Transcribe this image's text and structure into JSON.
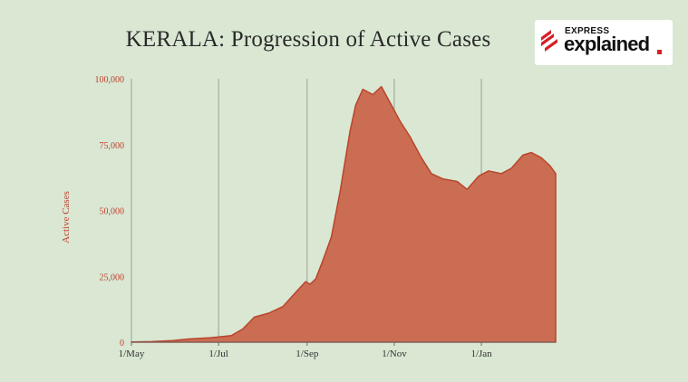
{
  "title": "KERALA: Progression of Active Cases",
  "brand": {
    "line1": "EXPRESS",
    "line2": "explained",
    "accent_color": "#d61f26"
  },
  "colors": {
    "background": "#d9e7d3",
    "area_fill": "#cb6d52",
    "area_stroke": "#b8452c",
    "axis_text": "#c2412c",
    "grid": "#9aa394"
  },
  "chart_data": {
    "type": "area",
    "ylabel": "Active Cases",
    "xlabel": "",
    "ylim": [
      0,
      100000
    ],
    "yticks": [
      0,
      25000,
      50000,
      75000,
      100000
    ],
    "ytick_labels": [
      "0",
      "25,000",
      "50,000",
      "75,000",
      "100,000"
    ],
    "xlim": [
      "2020-05-01",
      "2021-02-22"
    ],
    "xticks": [
      "2020-05-01",
      "2020-07-01",
      "2020-09-01",
      "2020-11-01",
      "2021-01-01"
    ],
    "xtick_labels": [
      "1/May",
      "1/Jul",
      "1/Sep",
      "1/Nov",
      "1/Jan"
    ],
    "grid": "vertical",
    "series": [
      {
        "points": [
          [
            "2020-05-01",
            100
          ],
          [
            "2020-05-15",
            200
          ],
          [
            "2020-05-30",
            600
          ],
          [
            "2020-06-10",
            1200
          ],
          [
            "2020-06-25",
            1700
          ],
          [
            "2020-07-01",
            2000
          ],
          [
            "2020-07-10",
            2500
          ],
          [
            "2020-07-18",
            5000
          ],
          [
            "2020-07-26",
            9500
          ],
          [
            "2020-08-05",
            11000
          ],
          [
            "2020-08-15",
            13500
          ],
          [
            "2020-08-25",
            19500
          ],
          [
            "2020-08-31",
            23000
          ],
          [
            "2020-09-03",
            22000
          ],
          [
            "2020-09-07",
            24000
          ],
          [
            "2020-09-12",
            31000
          ],
          [
            "2020-09-18",
            40000
          ],
          [
            "2020-09-24",
            57000
          ],
          [
            "2020-10-01",
            80000
          ],
          [
            "2020-10-05",
            90000
          ],
          [
            "2020-10-10",
            96000
          ],
          [
            "2020-10-17",
            94000
          ],
          [
            "2020-10-23",
            97000
          ],
          [
            "2020-10-30",
            90000
          ],
          [
            "2020-11-05",
            84000
          ],
          [
            "2020-11-12",
            78000
          ],
          [
            "2020-11-20",
            70000
          ],
          [
            "2020-11-27",
            64000
          ],
          [
            "2020-12-05",
            62000
          ],
          [
            "2020-12-15",
            61000
          ],
          [
            "2020-12-22",
            58000
          ],
          [
            "2020-12-30",
            63000
          ],
          [
            "2021-01-06",
            65000
          ],
          [
            "2021-01-15",
            64000
          ],
          [
            "2021-01-22",
            66000
          ],
          [
            "2021-01-30",
            71000
          ],
          [
            "2021-02-05",
            72000
          ],
          [
            "2021-02-12",
            70000
          ],
          [
            "2021-02-18",
            67000
          ],
          [
            "2021-02-22",
            64000
          ]
        ]
      }
    ]
  }
}
